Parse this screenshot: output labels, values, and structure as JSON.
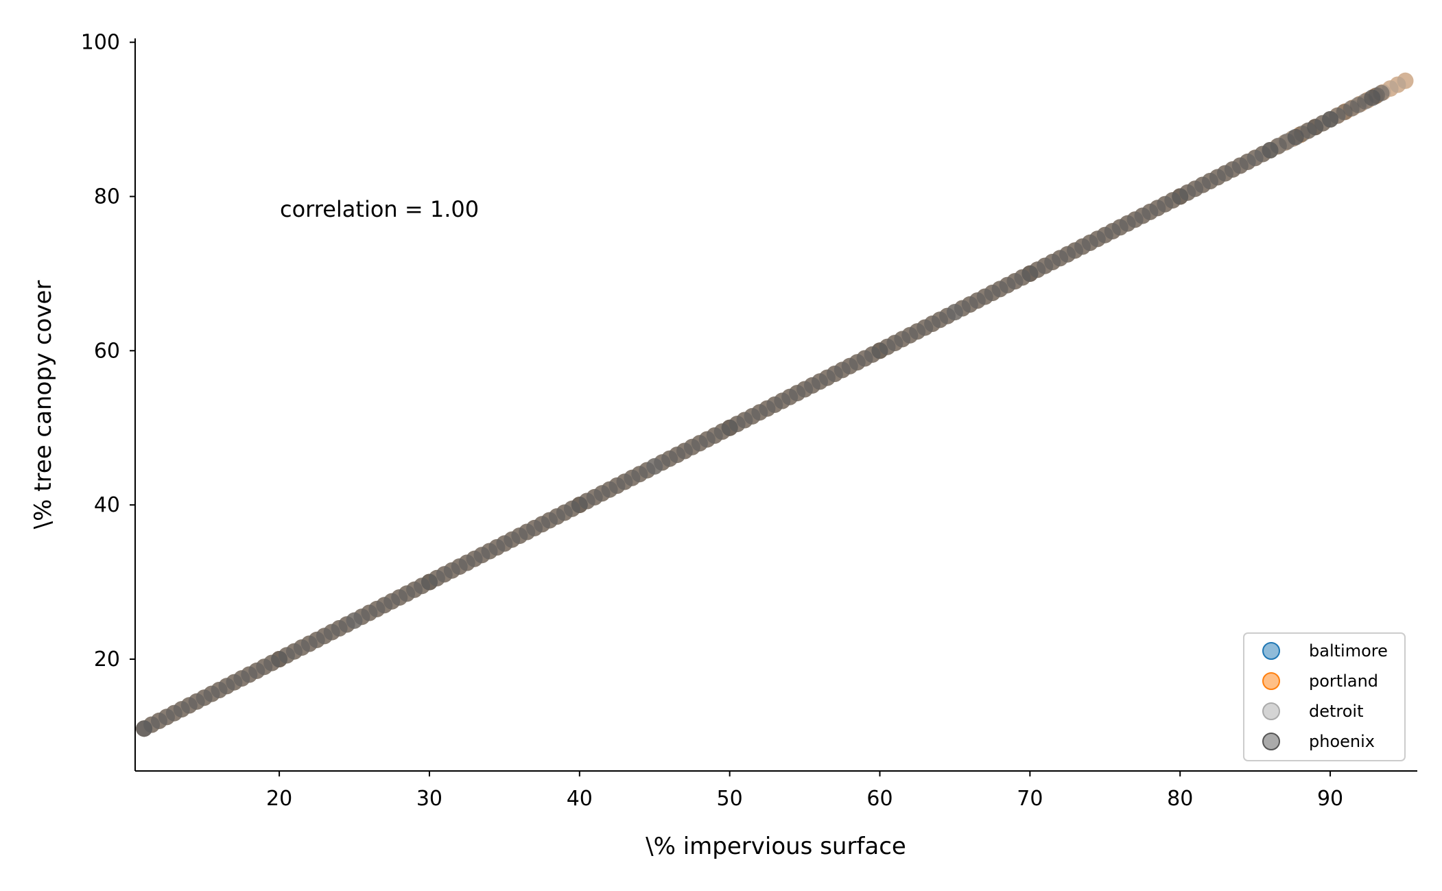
{
  "chart_data": {
    "type": "scatter",
    "title": "",
    "xlabel": "\\% impervious surface",
    "ylabel": "\\% tree canopy cover",
    "xlim": [
      10.4,
      95.8
    ],
    "ylim": [
      5.5,
      100.5
    ],
    "xticks": [
      20,
      30,
      40,
      50,
      60,
      70,
      80,
      90
    ],
    "yticks": [
      20,
      40,
      60,
      80,
      100
    ],
    "grid": false,
    "annotation": "correlation = 1.00",
    "legend": {
      "position": "lower-right"
    },
    "series": [
      {
        "name": "baltimore",
        "color": "#1f77b4",
        "alpha": 0.5,
        "x": [
          11,
          30,
          50,
          70,
          90
        ],
        "y": [
          11,
          30,
          50,
          70,
          90
        ]
      },
      {
        "name": "portland",
        "color": "#ff7f0e",
        "alpha": 0.5,
        "x": [
          11,
          20,
          30,
          40,
          50,
          60,
          70,
          80,
          85,
          88,
          89,
          91,
          93,
          95
        ],
        "y": [
          11,
          20,
          30,
          40,
          50,
          60,
          70,
          80,
          85,
          88,
          89,
          91,
          93,
          95
        ]
      },
      {
        "name": "detroit",
        "color": "#aaaaaa",
        "alpha": 0.5,
        "x": [
          11,
          25,
          45,
          65,
          85,
          95
        ],
        "y": [
          11,
          25,
          45,
          65,
          85,
          95
        ]
      },
      {
        "name": "phoenix",
        "color": "#555555",
        "alpha": 0.5,
        "x": [
          11,
          20,
          30,
          40,
          50,
          60,
          70,
          80,
          86,
          87.7,
          89,
          90,
          92.8,
          93.4
        ],
        "y": [
          11,
          20,
          30,
          40,
          50,
          60,
          70,
          80,
          86,
          87.7,
          89,
          90,
          92.8,
          93.4
        ]
      }
    ]
  }
}
